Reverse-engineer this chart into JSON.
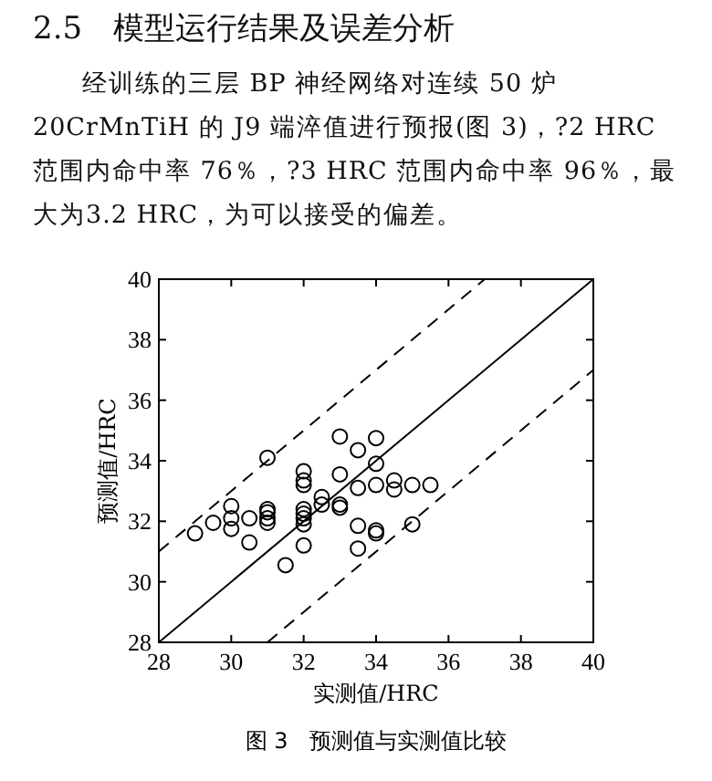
{
  "chart_data": {
    "type": "scatter",
    "title": "2.5　模型运行结果及误差分析",
    "annotations": [
      "经训练的三层 BP 神经网络对连续 50 炉 20CrMnTiH 的 J9 端淬值进行预报(图 3)，?2 HRC 范围内命中率 76％，?3 HRC 范围内命中率 96％，最大为3.2 HRC，为可以接受的偏差。",
      "图 3　预测值与实测值比较"
    ],
    "xlabel": "实测值/HRC",
    "ylabel": "预测值/HRC",
    "xlim": [
      28,
      40
    ],
    "ylim": [
      28,
      40
    ],
    "xticks": [
      28,
      30,
      32,
      34,
      36,
      38,
      40
    ],
    "yticks": [
      28,
      30,
      32,
      34,
      36,
      38,
      40
    ],
    "series": [
      {
        "marker": "circle",
        "color": "#000000",
        "x": [
          29,
          29.5,
          30,
          30,
          30,
          30.5,
          30.5,
          31,
          31,
          31,
          31,
          31,
          31.5,
          32,
          32,
          32,
          32,
          32,
          32,
          32,
          32,
          32.5,
          32.5,
          33,
          33,
          33,
          33,
          33.5,
          33.5,
          33.5,
          33.5,
          34,
          34,
          34,
          34,
          34,
          34.5,
          34.5,
          35,
          35,
          35.5
        ],
        "values": [
          31.6,
          31.95,
          32.5,
          32.1,
          31.75,
          32.1,
          31.3,
          34.1,
          32.4,
          32.3,
          32.1,
          31.95,
          30.55,
          33.65,
          33.35,
          33.2,
          32.4,
          32.25,
          32.1,
          31.9,
          31.2,
          32.8,
          32.55,
          34.8,
          33.55,
          32.55,
          32.45,
          34.35,
          33.1,
          31.85,
          31.1,
          34.75,
          33.9,
          33.2,
          31.7,
          31.6,
          33.35,
          33.05,
          33.2,
          31.9,
          33.2
        ]
      },
      {
        "type": "line",
        "color": "#000000",
        "line_style": "solid",
        "x": [
          28,
          40
        ],
        "values": [
          28,
          40
        ]
      },
      {
        "type": "line",
        "color": "#000000",
        "line_style": "dashed",
        "x": [
          28,
          37
        ],
        "values": [
          31,
          40
        ]
      },
      {
        "type": "line",
        "color": "#000000",
        "line_style": "dashed",
        "x": [
          31,
          40
        ],
        "values": [
          28,
          37
        ]
      }
    ]
  }
}
